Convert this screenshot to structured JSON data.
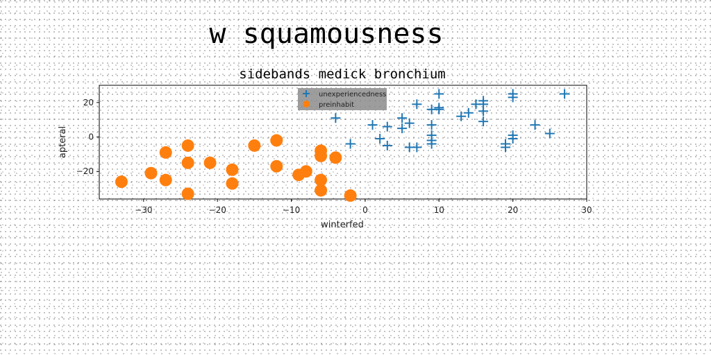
{
  "page": {
    "title": "w squamousness"
  },
  "chart_data": {
    "type": "scatter",
    "title": "sidebands medick bronchium",
    "xlabel": "winterfed",
    "ylabel": "apteral",
    "xlim": [
      -36,
      30
    ],
    "ylim": [
      -36,
      30
    ],
    "xticks": [
      -30,
      -20,
      -10,
      0,
      10,
      20,
      30
    ],
    "yticks": [
      -20,
      0,
      20
    ],
    "grid": false,
    "legend_position": "top-center",
    "series": [
      {
        "name": "unexperiencedness",
        "marker": "plus",
        "color": "#1f77b4",
        "points": [
          [
            -4,
            11
          ],
          [
            -2,
            -4
          ],
          [
            1,
            7
          ],
          [
            2,
            -1
          ],
          [
            3,
            -5
          ],
          [
            3,
            6
          ],
          [
            5,
            11
          ],
          [
            5,
            5
          ],
          [
            6,
            8
          ],
          [
            6,
            -6
          ],
          [
            7,
            19
          ],
          [
            7,
            -6
          ],
          [
            9,
            16
          ],
          [
            9,
            7
          ],
          [
            9,
            1
          ],
          [
            9,
            -2
          ],
          [
            9,
            -4
          ],
          [
            10,
            17
          ],
          [
            10,
            25
          ],
          [
            10,
            16
          ],
          [
            13,
            12
          ],
          [
            14,
            14
          ],
          [
            15,
            19
          ],
          [
            16,
            21
          ],
          [
            16,
            19
          ],
          [
            16,
            15
          ],
          [
            16,
            9
          ],
          [
            19,
            -4
          ],
          [
            19,
            -6
          ],
          [
            20,
            25
          ],
          [
            20,
            23
          ],
          [
            20,
            1
          ],
          [
            20,
            -1
          ],
          [
            23,
            7
          ],
          [
            25,
            2
          ],
          [
            27,
            25
          ]
        ]
      },
      {
        "name": "preinhabit",
        "marker": "circle",
        "color": "#ff7f0e",
        "points": [
          [
            -33,
            -26
          ],
          [
            -29,
            -21
          ],
          [
            -27,
            -9
          ],
          [
            -27,
            -25
          ],
          [
            -24,
            -5
          ],
          [
            -24,
            -15
          ],
          [
            -24,
            -33
          ],
          [
            -21,
            -15
          ],
          [
            -18,
            -19
          ],
          [
            -18,
            -27
          ],
          [
            -15,
            -5
          ],
          [
            -12,
            -17
          ],
          [
            -12,
            -2
          ],
          [
            -9,
            -22
          ],
          [
            -8,
            -20
          ],
          [
            -6,
            -11
          ],
          [
            -6,
            -25
          ],
          [
            -6,
            -31
          ],
          [
            -6,
            -8
          ],
          [
            -4,
            -12
          ],
          [
            -2,
            -34
          ]
        ]
      }
    ]
  }
}
